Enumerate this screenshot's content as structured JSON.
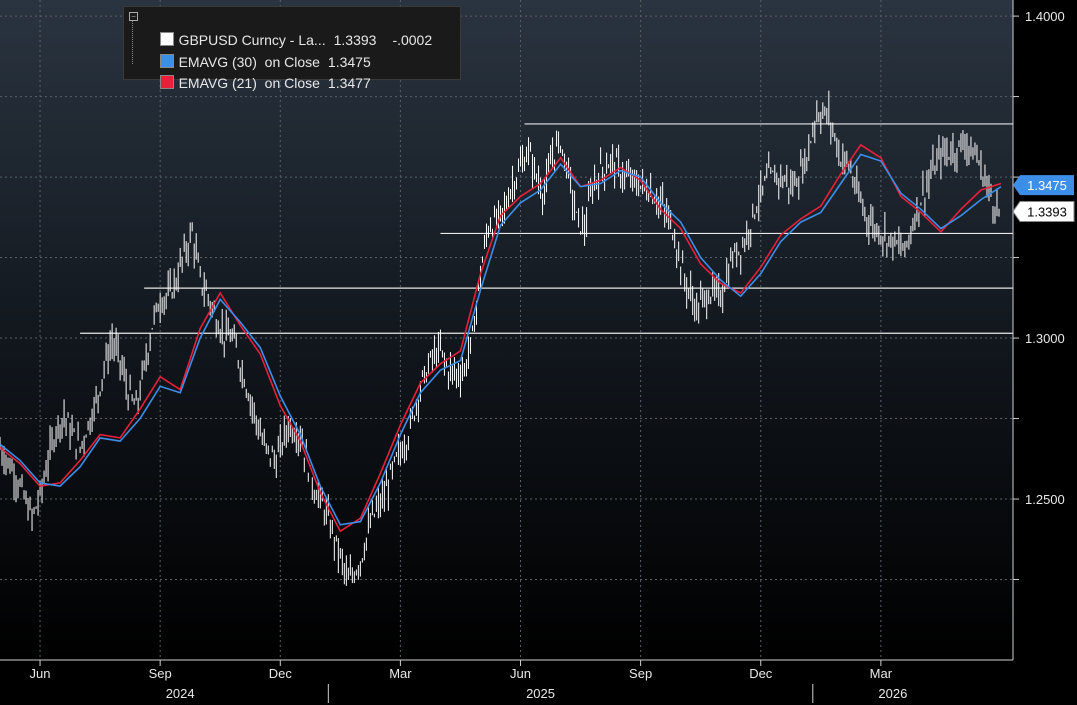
{
  "legend": {
    "rows": [
      {
        "name": "GBPUSD Curncy - La...",
        "value": "1.3393",
        "change": "-.0002",
        "color": "#ffffff"
      },
      {
        "name": "EMAVG (30)  on Close",
        "value": "1.3475",
        "color": "#3d8ee8"
      },
      {
        "name": "EMAVG (21)  on Close",
        "value": "1.3477",
        "color": "#e8203a"
      }
    ]
  },
  "price_tags": [
    {
      "label": "1.3475",
      "bg": "#3d8ee8",
      "fg": "#ffffff"
    },
    {
      "label": "1.3393",
      "bg": "#ffffff",
      "fg": "#000000"
    }
  ],
  "chart_data": {
    "type": "line",
    "y_axis_side": "right",
    "ylim": [
      1.2,
      1.405
    ],
    "yticks": [
      {
        "value": 1.25,
        "label": "1.2500"
      },
      {
        "value": 1.3,
        "label": "1.3000"
      },
      {
        "value": 1.4,
        "label": "1.4000"
      }
    ],
    "month_ticks": [
      {
        "label": "Jun",
        "month_index": 1
      },
      {
        "label": "Sep",
        "month_index": 4
      },
      {
        "label": "Dec",
        "month_index": 7
      },
      {
        "label": "Mar",
        "month_index": 10
      },
      {
        "label": "Jun",
        "month_index": 13
      },
      {
        "label": "Sep",
        "month_index": 16
      },
      {
        "label": "Dec",
        "month_index": 19
      },
      {
        "label": "Mar",
        "month_index": 22
      }
    ],
    "year_labels": [
      {
        "label": "2024",
        "month_index": 4.5
      },
      {
        "label": "2025",
        "month_index": 13.5
      },
      {
        "label": "2026",
        "month_index": 22.3
      }
    ],
    "year_dividers": [
      8.2,
      20.3
    ],
    "x_range_months": [
      0,
      25.3
    ],
    "grid": true,
    "legend_position": "top-left",
    "horizontal_levels": [
      {
        "value": 1.3015,
        "start_month": 2.0
      },
      {
        "value": 1.3155,
        "start_month": 3.6
      },
      {
        "value": 1.3325,
        "start_month": 11.0
      },
      {
        "value": 1.3665,
        "start_month": 13.1
      }
    ],
    "series": [
      {
        "name": "GBPUSD Curncy - La...",
        "color": "#ffffff",
        "style": "bar",
        "x": [
          0,
          0.4,
          0.8,
          1.0,
          1.2,
          1.4,
          1.6,
          1.8,
          2.0,
          2.2,
          2.4,
          2.6,
          2.8,
          3.0,
          3.2,
          3.4,
          3.6,
          3.8,
          4.0,
          4.2,
          4.4,
          4.6,
          4.8,
          5.0,
          5.2,
          5.4,
          5.6,
          5.8,
          6.0,
          6.3,
          6.6,
          6.9,
          7.2,
          7.5,
          7.8,
          8.1,
          8.4,
          8.7,
          9.0,
          9.3,
          9.6,
          9.9,
          10.2,
          10.5,
          10.8,
          11.0,
          11.2,
          11.4,
          11.6,
          11.8,
          12.0,
          12.2,
          12.4,
          12.6,
          12.8,
          13.0,
          13.2,
          13.4,
          13.6,
          13.8,
          14.0,
          14.2,
          14.4,
          14.6,
          14.8,
          15.0,
          15.3,
          15.6,
          15.9,
          16.2,
          16.5,
          16.8,
          17.1,
          17.4,
          17.7,
          18.0,
          18.3,
          18.6,
          18.9,
          19.2,
          19.5,
          19.8,
          20.1,
          20.4,
          20.7,
          21.0,
          21.2,
          21.4,
          21.6,
          21.8,
          22.0,
          22.3,
          22.6,
          22.9,
          23.2,
          23.5,
          23.8,
          24.1,
          24.4,
          24.7,
          24.9,
          25.0
        ],
        "values": [
          1.266,
          1.257,
          1.244,
          1.251,
          1.262,
          1.272,
          1.276,
          1.27,
          1.266,
          1.273,
          1.28,
          1.291,
          1.299,
          1.293,
          1.283,
          1.278,
          1.29,
          1.304,
          1.312,
          1.313,
          1.318,
          1.326,
          1.333,
          1.318,
          1.313,
          1.306,
          1.301,
          1.3,
          1.292,
          1.279,
          1.266,
          1.262,
          1.273,
          1.27,
          1.255,
          1.247,
          1.236,
          1.224,
          1.231,
          1.244,
          1.251,
          1.262,
          1.27,
          1.285,
          1.294,
          1.296,
          1.29,
          1.289,
          1.29,
          1.3,
          1.32,
          1.335,
          1.336,
          1.34,
          1.348,
          1.353,
          1.358,
          1.35,
          1.345,
          1.357,
          1.361,
          1.351,
          1.337,
          1.334,
          1.347,
          1.352,
          1.355,
          1.35,
          1.348,
          1.346,
          1.342,
          1.334,
          1.318,
          1.309,
          1.314,
          1.313,
          1.325,
          1.33,
          1.342,
          1.35,
          1.35,
          1.347,
          1.354,
          1.37,
          1.369,
          1.356,
          1.354,
          1.345,
          1.339,
          1.335,
          1.333,
          1.33,
          1.327,
          1.34,
          1.349,
          1.357,
          1.358,
          1.361,
          1.356,
          1.346,
          1.34,
          1.3393
        ]
      },
      {
        "name": "EMAVG (30)  on Close",
        "color": "#3d8ee8",
        "style": "line",
        "x": [
          0,
          0.5,
          1.0,
          1.5,
          2.0,
          2.5,
          3.0,
          3.5,
          4.0,
          4.5,
          5.0,
          5.5,
          6.0,
          6.5,
          7.0,
          7.5,
          8.0,
          8.5,
          9.0,
          9.5,
          10.0,
          10.5,
          11.0,
          11.5,
          12.0,
          12.5,
          13.0,
          13.5,
          14.0,
          14.5,
          15.0,
          15.5,
          16.0,
          16.5,
          17.0,
          17.5,
          18.0,
          18.5,
          19.0,
          19.5,
          20.0,
          20.5,
          21.0,
          21.5,
          22.0,
          22.5,
          23.0,
          23.5,
          24.0,
          24.5,
          25.0
        ],
        "values": [
          1.267,
          1.262,
          1.255,
          1.254,
          1.26,
          1.269,
          1.268,
          1.275,
          1.285,
          1.283,
          1.3,
          1.312,
          1.305,
          1.297,
          1.282,
          1.27,
          1.254,
          1.242,
          1.243,
          1.255,
          1.27,
          1.283,
          1.29,
          1.293,
          1.315,
          1.335,
          1.342,
          1.346,
          1.354,
          1.347,
          1.348,
          1.352,
          1.35,
          1.342,
          1.336,
          1.325,
          1.318,
          1.313,
          1.32,
          1.33,
          1.336,
          1.339,
          1.348,
          1.357,
          1.355,
          1.345,
          1.34,
          1.334,
          1.338,
          1.343,
          1.347
        ]
      },
      {
        "name": "EMAVG (21)  on Close",
        "color": "#e8203a",
        "style": "line",
        "x": [
          0,
          0.5,
          1.0,
          1.5,
          2.0,
          2.5,
          3.0,
          3.5,
          4.0,
          4.5,
          5.0,
          5.5,
          6.0,
          6.5,
          7.0,
          7.5,
          8.0,
          8.5,
          9.0,
          9.5,
          10.0,
          10.5,
          11.0,
          11.5,
          12.0,
          12.5,
          13.0,
          13.5,
          14.0,
          14.5,
          15.0,
          15.5,
          16.0,
          16.5,
          17.0,
          17.5,
          18.0,
          18.5,
          19.0,
          19.5,
          20.0,
          20.5,
          21.0,
          21.5,
          22.0,
          22.5,
          23.0,
          23.5,
          24.0,
          24.5,
          25.0
        ],
        "values": [
          1.266,
          1.261,
          1.254,
          1.255,
          1.262,
          1.27,
          1.269,
          1.278,
          1.288,
          1.284,
          1.303,
          1.314,
          1.304,
          1.295,
          1.279,
          1.268,
          1.252,
          1.24,
          1.244,
          1.258,
          1.273,
          1.286,
          1.292,
          1.296,
          1.32,
          1.338,
          1.344,
          1.348,
          1.356,
          1.347,
          1.349,
          1.353,
          1.349,
          1.34,
          1.334,
          1.323,
          1.317,
          1.314,
          1.322,
          1.332,
          1.337,
          1.341,
          1.351,
          1.36,
          1.356,
          1.344,
          1.339,
          1.333,
          1.34,
          1.346,
          1.348
        ]
      }
    ]
  }
}
